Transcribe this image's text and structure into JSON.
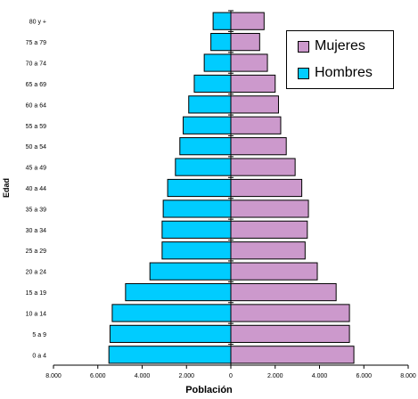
{
  "chart_data": {
    "type": "bar",
    "orientation": "horizontal",
    "subtype": "population-pyramid",
    "title": "",
    "xlabel": "Población",
    "ylabel": "Edad",
    "categories": [
      "0 a 4",
      "5 a 9",
      "10 a 14",
      "15 a 19",
      "20 a 24",
      "25 a 29",
      "30 a 34",
      "35 a 39",
      "40 a 44",
      "45 a 49",
      "50 a 54",
      "55 a 59",
      "60 a 64",
      "65 a 69",
      "70 a 74",
      "75 a 79",
      "80 y +"
    ],
    "series": [
      {
        "name": "Mujeres",
        "color": "#cc99cc",
        "values": [
          5550,
          5350,
          5350,
          4750,
          3900,
          3350,
          3450,
          3500,
          3200,
          2900,
          2500,
          2250,
          2150,
          2000,
          1650,
          1300,
          1500
        ]
      },
      {
        "name": "Hombres",
        "color": "#00ccff",
        "values": [
          5500,
          5450,
          5350,
          4750,
          3650,
          3100,
          3100,
          3050,
          2850,
          2500,
          2300,
          2150,
          1900,
          1650,
          1200,
          900,
          800
        ]
      }
    ],
    "xlim": [
      -8000,
      8000
    ],
    "xticks": [
      "8.000",
      "6.000",
      "4.000",
      "2.000",
      "0",
      "2.000",
      "4.000",
      "6.000",
      "8.000"
    ],
    "grid": false,
    "legend_position": "top-right"
  }
}
